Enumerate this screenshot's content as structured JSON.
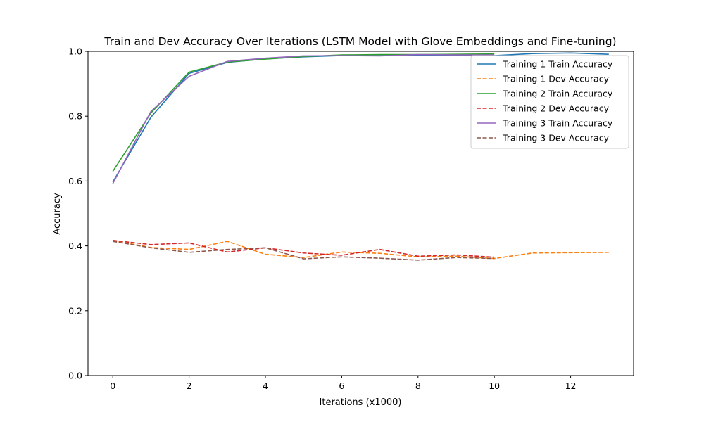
{
  "chart_data": {
    "type": "line",
    "title": "Train and Dev Accuracy Over Iterations (LSTM Model with Glove Embeddings and Fine-tuning)",
    "xlabel": "Iterations (x1000)",
    "ylabel": "Accuracy",
    "xlim": [
      -0.65,
      13.65
    ],
    "ylim": [
      0,
      1.0
    ],
    "xticks": [
      0,
      2,
      4,
      6,
      8,
      10,
      12
    ],
    "yticks": [
      0.0,
      0.2,
      0.4,
      0.6,
      0.8,
      1.0
    ],
    "grid": false,
    "legend_position": "top-right",
    "series": [
      {
        "name": "Training 1 Train Accuracy",
        "color": "#1f77b4",
        "style": "solid",
        "x": [
          0,
          1,
          2,
          3,
          4,
          5,
          6,
          7,
          8,
          9,
          10,
          11,
          12,
          13
        ],
        "y": [
          0.597,
          0.797,
          0.932,
          0.966,
          0.977,
          0.983,
          0.987,
          0.987,
          0.989,
          0.988,
          0.987,
          0.993,
          0.995,
          0.991
        ]
      },
      {
        "name": "Training 1 Dev Accuracy",
        "color": "#ff7f0e",
        "style": "dashed",
        "x": [
          0,
          1,
          2,
          3,
          4,
          5,
          6,
          7,
          8,
          9,
          10,
          11,
          12,
          13
        ],
        "y": [
          0.417,
          0.395,
          0.389,
          0.414,
          0.374,
          0.364,
          0.381,
          0.377,
          0.366,
          0.368,
          0.361,
          0.378,
          0.379,
          0.38
        ]
      },
      {
        "name": "Training 2 Train Accuracy",
        "color": "#2ca02c",
        "style": "solid",
        "x": [
          0,
          1,
          2,
          3,
          4,
          5,
          6,
          7,
          8,
          9,
          10
        ],
        "y": [
          0.63,
          0.81,
          0.936,
          0.967,
          0.976,
          0.984,
          0.989,
          0.99,
          0.99,
          0.991,
          0.992
        ]
      },
      {
        "name": "Training 2 Dev Accuracy",
        "color": "#d62728",
        "style": "dashed",
        "x": [
          0,
          1,
          2,
          3,
          4,
          5,
          6,
          7,
          8,
          9,
          10
        ],
        "y": [
          0.417,
          0.404,
          0.409,
          0.381,
          0.394,
          0.378,
          0.371,
          0.389,
          0.368,
          0.372,
          0.365
        ]
      },
      {
        "name": "Training 3 Train Accuracy",
        "color": "#9467bd",
        "style": "solid",
        "x": [
          0,
          1,
          2,
          3,
          4,
          5,
          6,
          7,
          8,
          9,
          10
        ],
        "y": [
          0.592,
          0.815,
          0.923,
          0.969,
          0.979,
          0.986,
          0.987,
          0.986,
          0.99,
          0.989,
          0.989
        ]
      },
      {
        "name": "Training 3 Dev Accuracy",
        "color": "#8c564b",
        "style": "dashed",
        "x": [
          0,
          1,
          2,
          3,
          4,
          5,
          6,
          7,
          8,
          9,
          10
        ],
        "y": [
          0.414,
          0.394,
          0.38,
          0.389,
          0.394,
          0.36,
          0.366,
          0.362,
          0.356,
          0.364,
          0.361
        ]
      }
    ]
  }
}
